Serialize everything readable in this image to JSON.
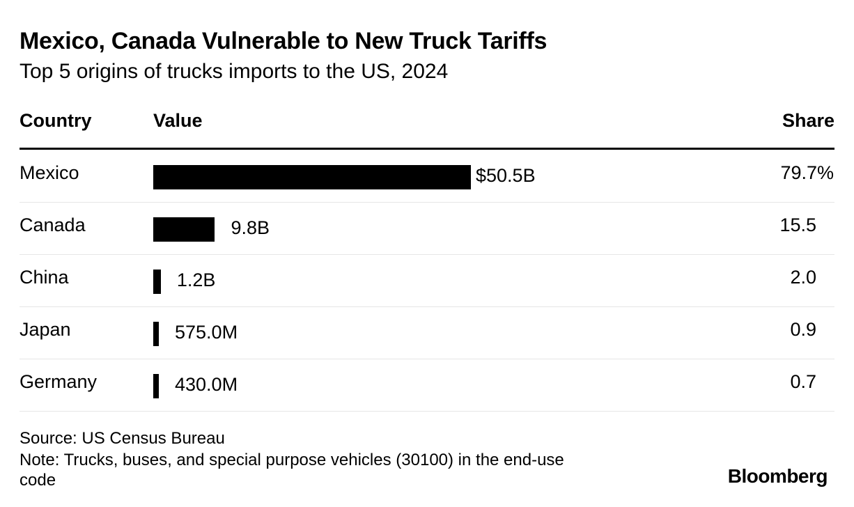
{
  "chart_data": {
    "type": "bar",
    "title": "Mexico, Canada Vulnerable to New Truck Tariffs",
    "subtitle": "Top 5 origins of trucks imports to the US, 2024",
    "columns": {
      "country": "Country",
      "value": "Value",
      "share": "Share"
    },
    "categories": [
      "Mexico",
      "Canada",
      "China",
      "Japan",
      "Germany"
    ],
    "values": [
      50.5,
      9.8,
      1.2,
      0.575,
      0.43
    ],
    "value_unit": "billion USD",
    "value_labels": [
      "$50.5B",
      "9.8B",
      "1.2B",
      "575.0M",
      "430.0M"
    ],
    "share_values": [
      79.7,
      15.5,
      2.0,
      0.9,
      0.7
    ],
    "share_labels": [
      "79.7%",
      "15.5",
      "2.0",
      "0.9",
      "0.7"
    ],
    "source": "Source: US Census Bureau",
    "note": "Note: Trucks, buses, and special purpose vehicles (30100) in the end-use code",
    "brand": "Bloomberg",
    "bar_color": "#000000"
  }
}
